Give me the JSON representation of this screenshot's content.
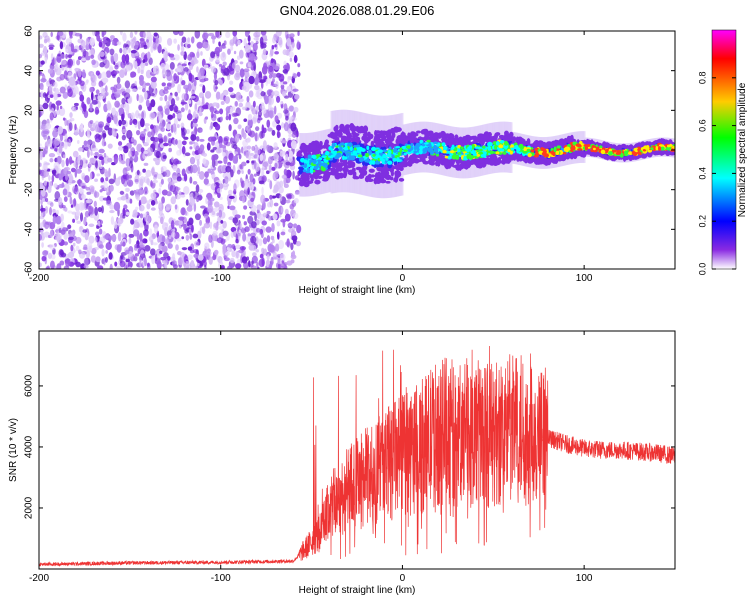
{
  "title": "GN04.2026.088.01.29.E06",
  "colors": {
    "snr_line": "#ee3333",
    "spectro_low": "#8a2be2",
    "colorbar": [
      "#ff00ff",
      "#ff0000",
      "#ffff00",
      "#00ff00",
      "#00ffff",
      "#0000ff",
      "#ffffff"
    ]
  },
  "chart_data": [
    {
      "type": "heatmap",
      "title": "GN04.2026.088.01.29.E06",
      "xlabel": "Height of straight line (km)",
      "ylabel": "Frequency (Hz)",
      "xlim": [
        -200,
        150
      ],
      "ylim": [
        -60,
        60
      ],
      "xticks": [
        "-200",
        "-100",
        "0",
        "100"
      ],
      "xtick_values": [
        -200,
        -100,
        0,
        100
      ],
      "yticks": [
        "60",
        "40",
        "20",
        "0",
        "-20",
        "-40",
        "-60"
      ],
      "ytick_values": [
        60,
        40,
        20,
        0,
        -20,
        -40,
        -60
      ],
      "noise_region_km": [
        -200,
        -57
      ],
      "signal_center_hz": 0,
      "colorbar": {
        "label": "Normalized spectral amplitude",
        "range": [
          0.0,
          1.0
        ],
        "ticks": [
          "0.0",
          "0.2",
          "0.4",
          "0.6",
          "0.8"
        ],
        "tick_values": [
          0.0,
          0.2,
          0.4,
          0.6,
          0.8
        ]
      }
    },
    {
      "type": "line",
      "xlabel": "Height of straight line (km)",
      "ylabel": "SNR (10 * v/v)",
      "xlim": [
        -200,
        150
      ],
      "ylim": [
        0,
        7800
      ],
      "xticks": [
        "-200",
        "-100",
        "0",
        "100"
      ],
      "xtick_values": [
        -200,
        -100,
        0,
        100
      ],
      "yticks": [
        "2000",
        "4000",
        "6000"
      ],
      "ytick_values": [
        2000,
        4000,
        6000
      ],
      "series": [
        {
          "x": [
            -200,
            -150,
            -100,
            -60,
            -45,
            -40,
            -30,
            -20,
            -10,
            0,
            10,
            20,
            25,
            30,
            40,
            50,
            60,
            70,
            80,
            90,
            100,
            110,
            120,
            130,
            140,
            150
          ],
          "y": [
            150,
            200,
            220,
            260,
            1200,
            2000,
            2600,
            3000,
            3400,
            3700,
            4000,
            4500,
            4600,
            4300,
            4500,
            4400,
            4600,
            4600,
            4300,
            4100,
            3950,
            3900,
            3900,
            3850,
            3800,
            3700
          ]
        }
      ]
    }
  ]
}
